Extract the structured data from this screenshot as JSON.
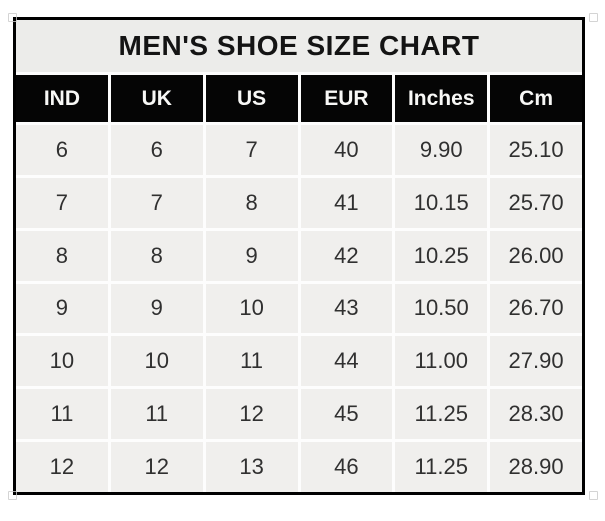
{
  "chart_data": {
    "type": "table",
    "title": "MEN'S SHOE SIZE CHART",
    "headers": [
      "IND",
      "UK",
      "US",
      "EUR",
      "Inches",
      "Cm"
    ],
    "rows": [
      [
        "6",
        "6",
        "7",
        "40",
        "9.90",
        "25.10"
      ],
      [
        "7",
        "7",
        "8",
        "41",
        "10.15",
        "25.70"
      ],
      [
        "8",
        "8",
        "9",
        "42",
        "10.25",
        "26.00"
      ],
      [
        "9",
        "9",
        "10",
        "43",
        "10.50",
        "26.70"
      ],
      [
        "10",
        "10",
        "11",
        "44",
        "11.00",
        "27.90"
      ],
      [
        "11",
        "11",
        "12",
        "45",
        "11.25",
        "28.30"
      ],
      [
        "12",
        "12",
        "13",
        "46",
        "11.25",
        "28.90"
      ]
    ],
    "layout": {
      "title_row_merged": true,
      "gridlines": "white 3px between all cells",
      "outer_border": "black 3px"
    }
  },
  "colors": {
    "page-bg": "#ffffff",
    "border": "#000000",
    "gridline": "#fdfdfd",
    "title-bg": "#ececea",
    "title-text": "#141414",
    "header-bg": "#050505",
    "header-text": "#f8f8f6",
    "cell-bg": "#f0efed",
    "cell-text": "#303030"
  }
}
